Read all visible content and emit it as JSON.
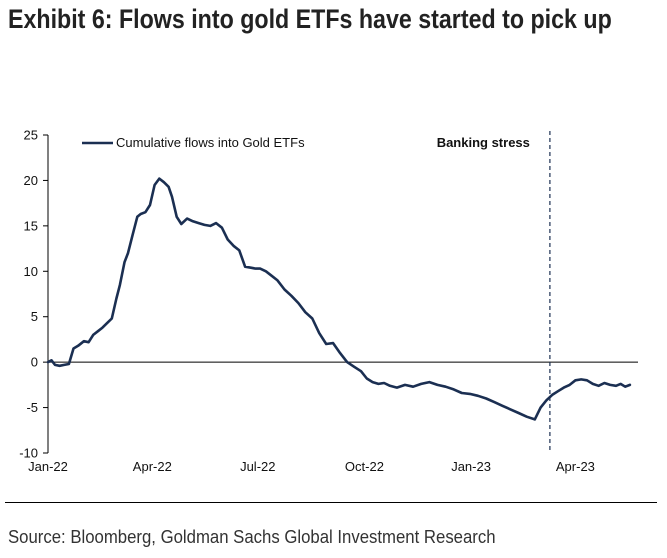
{
  "header": {
    "title": "Exhibit 6: Flows into gold ETFs have started to pick up"
  },
  "footer": {
    "source": "Source: Bloomberg, Goldman Sachs Global Investment Research"
  },
  "colors": {
    "series": "#1b2f52",
    "axis": "#000000",
    "text": "#111111"
  },
  "chart_data": {
    "type": "line",
    "title": "",
    "xlabel": "",
    "ylabel": "",
    "ylim": [
      -10,
      25
    ],
    "yticks": [
      -10,
      -5,
      0,
      5,
      10,
      15,
      20,
      25
    ],
    "xlim": [
      "2022-01-01",
      "2023-05-25"
    ],
    "xticks": [
      {
        "date": "2022-01-01",
        "label": "Jan-22"
      },
      {
        "date": "2022-04-01",
        "label": "Apr-22"
      },
      {
        "date": "2022-07-01",
        "label": "Jul-22"
      },
      {
        "date": "2022-10-01",
        "label": "Oct-22"
      },
      {
        "date": "2023-01-01",
        "label": "Jan-23"
      },
      {
        "date": "2023-04-01",
        "label": "Apr-23"
      }
    ],
    "grid": false,
    "legend": "top-left",
    "annotations": [
      {
        "type": "vline",
        "date": "2023-03-10",
        "label": "Banking stress",
        "style": "dashed"
      }
    ],
    "series": [
      {
        "name": "Cumulative flows into Gold ETFs",
        "x": [
          "2022-01-01",
          "2022-01-04",
          "2022-01-07",
          "2022-01-11",
          "2022-01-15",
          "2022-01-19",
          "2022-01-23",
          "2022-01-27",
          "2022-02-01",
          "2022-02-05",
          "2022-02-09",
          "2022-02-13",
          "2022-02-17",
          "2022-02-21",
          "2022-02-25",
          "2022-03-01",
          "2022-03-04",
          "2022-03-08",
          "2022-03-11",
          "2022-03-15",
          "2022-03-19",
          "2022-03-22",
          "2022-03-26",
          "2022-03-30",
          "2022-04-03",
          "2022-04-07",
          "2022-04-11",
          "2022-04-15",
          "2022-04-18",
          "2022-04-22",
          "2022-04-26",
          "2022-05-01",
          "2022-05-06",
          "2022-05-11",
          "2022-05-16",
          "2022-05-21",
          "2022-05-26",
          "2022-05-31",
          "2022-06-05",
          "2022-06-10",
          "2022-06-15",
          "2022-06-20",
          "2022-06-25",
          "2022-06-29",
          "2022-07-03",
          "2022-07-08",
          "2022-07-13",
          "2022-07-18",
          "2022-07-24",
          "2022-07-30",
          "2022-08-05",
          "2022-08-11",
          "2022-08-17",
          "2022-08-23",
          "2022-08-29",
          "2022-09-04",
          "2022-09-10",
          "2022-09-16",
          "2022-09-22",
          "2022-09-28",
          "2022-10-03",
          "2022-10-08",
          "2022-10-13",
          "2022-10-18",
          "2022-10-23",
          "2022-10-29",
          "2022-11-05",
          "2022-11-12",
          "2022-11-19",
          "2022-11-26",
          "2022-12-03",
          "2022-12-10",
          "2022-12-17",
          "2022-12-24",
          "2022-12-31",
          "2023-01-07",
          "2023-01-14",
          "2023-01-21",
          "2023-01-28",
          "2023-02-04",
          "2023-02-11",
          "2023-02-18",
          "2023-02-25",
          "2023-03-02",
          "2023-03-07",
          "2023-03-12",
          "2023-03-17",
          "2023-03-22",
          "2023-03-27",
          "2023-04-01",
          "2023-04-06",
          "2023-04-11",
          "2023-04-16",
          "2023-04-21",
          "2023-04-26",
          "2023-05-01",
          "2023-05-06",
          "2023-05-10",
          "2023-05-14",
          "2023-05-18"
        ],
        "values": [
          0.0,
          0.2,
          -0.3,
          -0.4,
          -0.3,
          -0.2,
          1.5,
          1.8,
          2.3,
          2.2,
          3.0,
          3.4,
          3.8,
          4.3,
          4.8,
          7.0,
          8.5,
          11.0,
          12.0,
          14.0,
          16.0,
          16.3,
          16.5,
          17.3,
          19.5,
          20.2,
          19.8,
          19.3,
          18.2,
          16.0,
          15.2,
          15.8,
          15.5,
          15.3,
          15.1,
          15.0,
          15.3,
          14.8,
          13.5,
          12.8,
          12.3,
          10.5,
          10.4,
          10.3,
          10.3,
          10.0,
          9.5,
          9.0,
          8.0,
          7.3,
          6.5,
          5.5,
          4.8,
          3.2,
          2.0,
          2.1,
          1.0,
          0.0,
          -0.5,
          -1.0,
          -1.8,
          -2.2,
          -2.4,
          -2.3,
          -2.6,
          -2.8,
          -2.5,
          -2.7,
          -2.4,
          -2.2,
          -2.5,
          -2.7,
          -3.0,
          -3.4,
          -3.5,
          -3.7,
          -4.0,
          -4.4,
          -4.8,
          -5.2,
          -5.6,
          -6.0,
          -6.3,
          -5.0,
          -4.2,
          -3.6,
          -3.2,
          -2.8,
          -2.5,
          -2.0,
          -1.9,
          -2.0,
          -2.4,
          -2.6,
          -2.3,
          -2.5,
          -2.6,
          -2.4,
          -2.7,
          -2.5
        ]
      }
    ]
  }
}
